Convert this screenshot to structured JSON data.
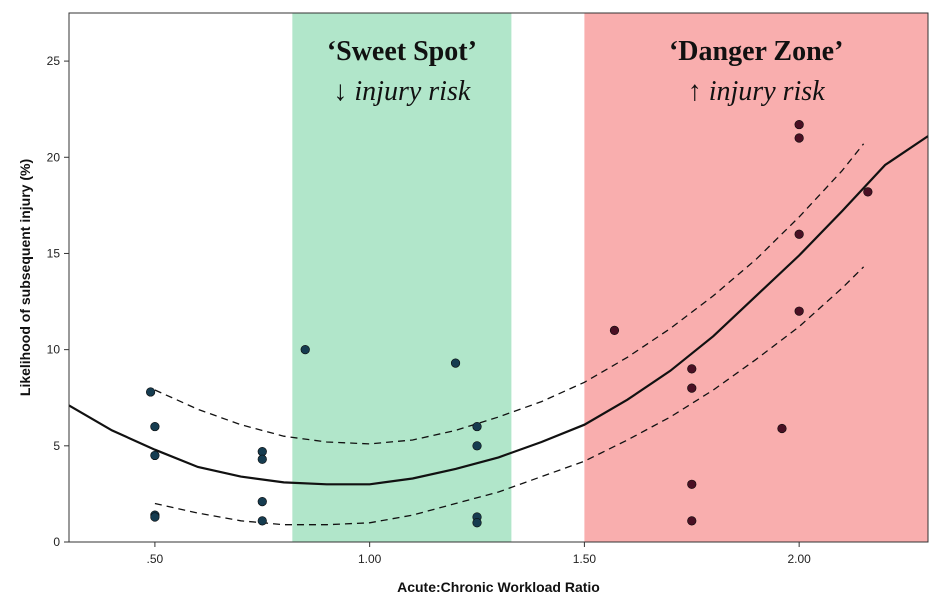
{
  "chart_data": {
    "type": "scatter",
    "xlabel": "Acute:Chronic Workload Ratio",
    "ylabel": "Likelihood of subsequent injury (%)",
    "xlim": [
      0.3,
      2.3
    ],
    "ylim": [
      0,
      27.5
    ],
    "x_ticks": [
      0.5,
      1.0,
      1.5,
      2.0
    ],
    "x_tick_labels": [
      ".50",
      "1.00",
      "1.50",
      "2.00"
    ],
    "y_ticks": [
      0,
      5,
      10,
      15,
      20,
      25
    ],
    "y_tick_labels": [
      "0",
      "5",
      "10",
      "15",
      "20",
      "25"
    ],
    "grid": false,
    "zones": [
      {
        "x_range": [
          0.82,
          1.33
        ],
        "color": "#b1e6ca",
        "title": "‘Sweet Spot’",
        "subtitle": "↓ injury risk"
      },
      {
        "x_range": [
          1.5,
          2.3
        ],
        "color": "#f9aeae",
        "title": "‘Danger Zone’",
        "subtitle": "↑ injury risk"
      }
    ],
    "points": [
      {
        "x": 0.49,
        "y": 7.8
      },
      {
        "x": 0.5,
        "y": 6.0
      },
      {
        "x": 0.5,
        "y": 4.5
      },
      {
        "x": 0.5,
        "y": 1.4
      },
      {
        "x": 0.5,
        "y": 1.3
      },
      {
        "x": 0.75,
        "y": 4.7
      },
      {
        "x": 0.75,
        "y": 4.3
      },
      {
        "x": 0.75,
        "y": 2.1
      },
      {
        "x": 0.75,
        "y": 1.1
      },
      {
        "x": 0.85,
        "y": 10.0
      },
      {
        "x": 1.2,
        "y": 9.3
      },
      {
        "x": 1.25,
        "y": 6.0
      },
      {
        "x": 1.25,
        "y": 5.0
      },
      {
        "x": 1.25,
        "y": 1.3
      },
      {
        "x": 1.25,
        "y": 1.0
      },
      {
        "x": 1.57,
        "y": 11.0
      },
      {
        "x": 1.75,
        "y": 9.0
      },
      {
        "x": 1.75,
        "y": 8.0
      },
      {
        "x": 1.75,
        "y": 3.0
      },
      {
        "x": 1.75,
        "y": 1.1
      },
      {
        "x": 1.96,
        "y": 5.9
      },
      {
        "x": 2.0,
        "y": 21.7
      },
      {
        "x": 2.0,
        "y": 21.0
      },
      {
        "x": 2.0,
        "y": 16.0
      },
      {
        "x": 2.0,
        "y": 12.0
      },
      {
        "x": 2.16,
        "y": 18.2
      }
    ],
    "fit_curve": {
      "x": [
        0.3,
        0.4,
        0.5,
        0.6,
        0.7,
        0.8,
        0.9,
        1.0,
        1.1,
        1.2,
        1.3,
        1.4,
        1.5,
        1.6,
        1.7,
        1.8,
        1.9,
        2.0,
        2.1,
        2.2,
        2.3
      ],
      "y": [
        7.1,
        5.8,
        4.8,
        3.9,
        3.4,
        3.1,
        3.0,
        3.0,
        3.3,
        3.8,
        4.4,
        5.2,
        6.1,
        7.4,
        8.9,
        10.7,
        12.8,
        14.9,
        17.2,
        19.6,
        21.1
      ]
    },
    "upper_band": {
      "x": [
        0.5,
        0.6,
        0.7,
        0.8,
        0.9,
        1.0,
        1.1,
        1.2,
        1.3,
        1.4,
        1.5,
        1.6,
        1.7,
        1.8,
        1.9,
        2.0,
        2.1,
        2.15
      ],
      "y": [
        7.9,
        6.9,
        6.1,
        5.5,
        5.2,
        5.1,
        5.3,
        5.8,
        6.5,
        7.3,
        8.3,
        9.6,
        11.1,
        12.8,
        14.7,
        16.9,
        19.3,
        20.7
      ]
    },
    "lower_band": {
      "x": [
        0.5,
        0.6,
        0.7,
        0.8,
        0.9,
        1.0,
        1.1,
        1.2,
        1.3,
        1.4,
        1.5,
        1.6,
        1.7,
        1.8,
        1.9,
        2.0,
        2.1,
        2.15
      ],
      "y": [
        2.0,
        1.5,
        1.1,
        0.9,
        0.9,
        1.0,
        1.4,
        2.0,
        2.6,
        3.4,
        4.2,
        5.3,
        6.5,
        7.9,
        9.5,
        11.2,
        13.2,
        14.3
      ]
    },
    "colors": {
      "point_fill": "#163c50",
      "point_fill_danger": "#4a1024",
      "curve": "#111111"
    }
  }
}
